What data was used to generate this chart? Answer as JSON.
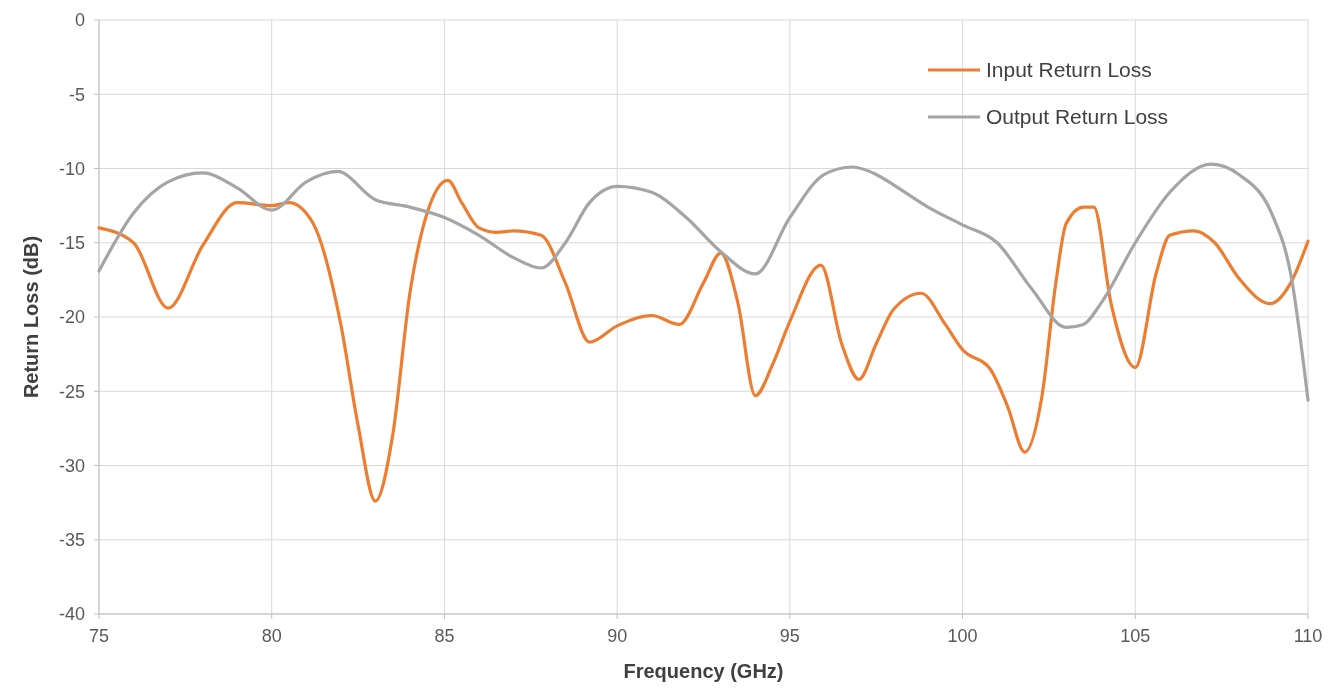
{
  "chart_data": {
    "type": "line",
    "xlabel": "Frequency (GHz)",
    "ylabel": "Return Loss (dB)",
    "xlim": [
      75,
      110
    ],
    "xticks": [
      75,
      80,
      85,
      90,
      95,
      100,
      105,
      110
    ],
    "ylim": [
      -40,
      0
    ],
    "yticks": [
      -40,
      -35,
      -30,
      -25,
      -20,
      -15,
      -10,
      -5,
      0
    ],
    "grid": true,
    "legend": "top right",
    "marker": "none",
    "line_style": "solid",
    "series": [
      {
        "name": "Input Return Loss",
        "color": "#ed7d31",
        "x": [
          75,
          76,
          77,
          78,
          79,
          80,
          80.5,
          81.2,
          82,
          82.5,
          83,
          83.5,
          84,
          84.5,
          85.1,
          85.5,
          86,
          86.5,
          87,
          87.8,
          88.5,
          89.2,
          90,
          91,
          91.8,
          92.5,
          93,
          93.5,
          94,
          94.5,
          95,
          95.9,
          96.5,
          97,
          97.5,
          98,
          98.8,
          99.5,
          100,
          100.8,
          101.3,
          101.8,
          102.3,
          102.7,
          103,
          103.5,
          103.8,
          104.3,
          105,
          105.6,
          106,
          106.7,
          107.3,
          108,
          108.9,
          109.5,
          110
        ],
        "values": [
          -14.0,
          -15.0,
          -19.4,
          -15.2,
          -12.3,
          -12.5,
          -12.3,
          -13.7,
          -20.5,
          -27.3,
          -32.4,
          -28,
          -18.4,
          -13,
          -10.8,
          -12.3,
          -14,
          -14.3,
          -14.2,
          -14.5,
          -17.7,
          -21.7,
          -20.6,
          -19.9,
          -20.5,
          -17.7,
          -15.7,
          -19.1,
          -25.3,
          -23.2,
          -20.3,
          -16.5,
          -21.8,
          -24.2,
          -21.8,
          -19.5,
          -18.4,
          -20.5,
          -22.2,
          -23.5,
          -26,
          -29.1,
          -25.3,
          -17.7,
          -13.7,
          -12.6,
          -12.6,
          -19.1,
          -23.4,
          -17.1,
          -14.5,
          -14.2,
          -15,
          -17.4,
          -19.1,
          -17.7,
          -14.9
        ]
      },
      {
        "name": "Output Return Loss",
        "color": "#a5a5a5",
        "x": [
          75,
          76,
          77,
          78,
          79,
          80,
          81,
          81.9,
          83,
          84,
          85,
          86,
          87,
          87.8,
          88.5,
          89.2,
          90,
          91,
          92,
          93,
          94,
          95,
          96,
          96.8,
          97.5,
          98,
          99,
          100,
          101,
          102,
          103,
          103.5,
          104,
          105,
          106,
          107.2,
          108,
          109,
          109.5,
          110
        ],
        "values": [
          -16.9,
          -13,
          -10.9,
          -10.3,
          -11.3,
          -12.8,
          -10.9,
          -10.2,
          -12.1,
          -12.6,
          -13.3,
          -14.5,
          -16,
          -16.7,
          -15,
          -12.3,
          -11.2,
          -11.6,
          -13.3,
          -15.6,
          -17.1,
          -13.3,
          -10.4,
          -9.9,
          -10.4,
          -11.1,
          -12.6,
          -13.8,
          -15,
          -18.1,
          -20.7,
          -20.5,
          -19.1,
          -15,
          -11.6,
          -9.7,
          -10.4,
          -13.3,
          -17.1,
          -25.6
        ]
      }
    ]
  }
}
